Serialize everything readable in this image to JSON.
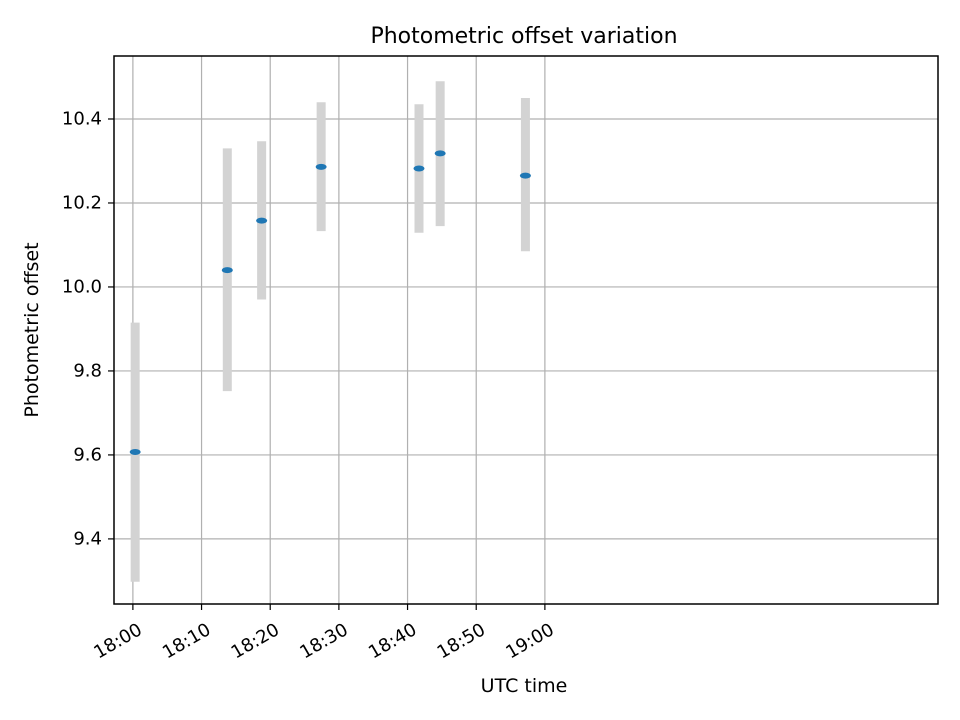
{
  "chart_data": {
    "type": "scatter",
    "title": "Photometric offset variation",
    "xlabel": "UTC time",
    "ylabel": "Photometric offset",
    "x_axis_type": "time",
    "xlim": [
      "17:57:15",
      "19:57:15"
    ],
    "ylim": [
      9.245,
      10.55
    ],
    "x_ticks": [
      "18:00",
      "18:10",
      "18:20",
      "18:30",
      "18:40",
      "18:50",
      "19:00"
    ],
    "y_ticks": [
      9.4,
      9.6,
      9.8,
      10.0,
      10.2,
      10.4
    ],
    "grid": true,
    "legend": "none",
    "series": [
      {
        "points": [
          {
            "x": "18:00:20",
            "y": 9.607,
            "err_low": 9.298,
            "err_high": 9.915
          },
          {
            "x": "18:13:45",
            "y": 10.04,
            "err_low": 9.752,
            "err_high": 10.33
          },
          {
            "x": "18:18:45",
            "y": 10.158,
            "err_low": 9.97,
            "err_high": 10.347
          },
          {
            "x": "18:27:25",
            "y": 10.286,
            "err_low": 10.133,
            "err_high": 10.44
          },
          {
            "x": "18:41:40",
            "y": 10.282,
            "err_low": 10.129,
            "err_high": 10.435
          },
          {
            "x": "18:44:45",
            "y": 10.318,
            "err_low": 10.145,
            "err_high": 10.49
          },
          {
            "x": "18:57:10",
            "y": 10.265,
            "err_low": 10.085,
            "err_high": 10.45
          }
        ]
      }
    ],
    "colors": {
      "marker": "#1f77b4",
      "errorbar": "#d3d3d3",
      "grid": "#b0b0b0",
      "axes": "#000000"
    }
  }
}
